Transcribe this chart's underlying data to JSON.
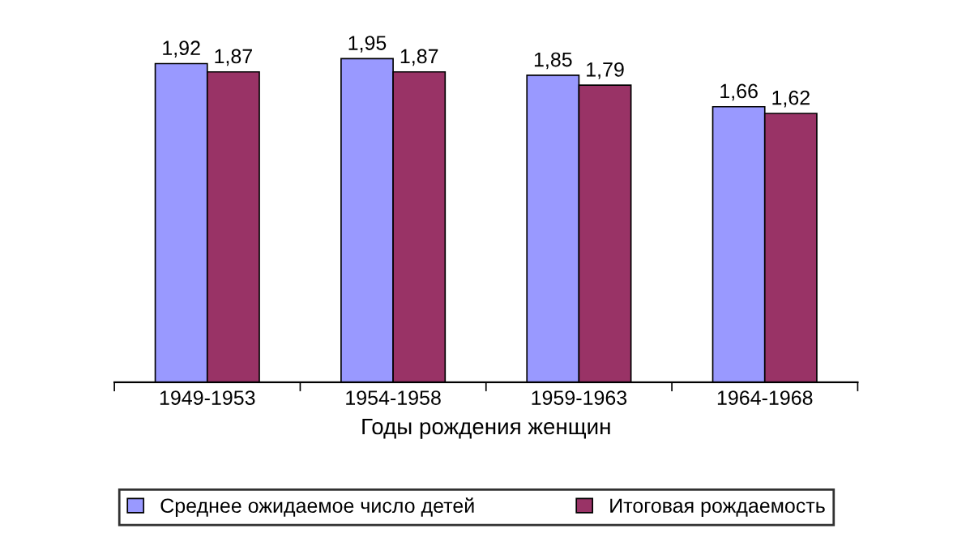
{
  "chart_data": {
    "type": "bar",
    "xlabel": "Годы рождения женщин",
    "categories": [
      "1949-1953",
      "1954-1958",
      "1959-1963",
      "1964-1968"
    ],
    "series": [
      {
        "name": "Среднее ожидаемое число детей",
        "color": "#9999ff",
        "values": [
          1.92,
          1.95,
          1.85,
          1.66
        ],
        "value_labels": [
          "1,92",
          "1,95",
          "1,85",
          "1,66"
        ]
      },
      {
        "name": "Итоговая рождаемость",
        "color": "#993366",
        "values": [
          1.87,
          1.87,
          1.79,
          1.62
        ],
        "value_labels": [
          "1,87",
          "1,87",
          "1,79",
          "1,62"
        ]
      }
    ],
    "legend": "bottom",
    "grid": false
  }
}
